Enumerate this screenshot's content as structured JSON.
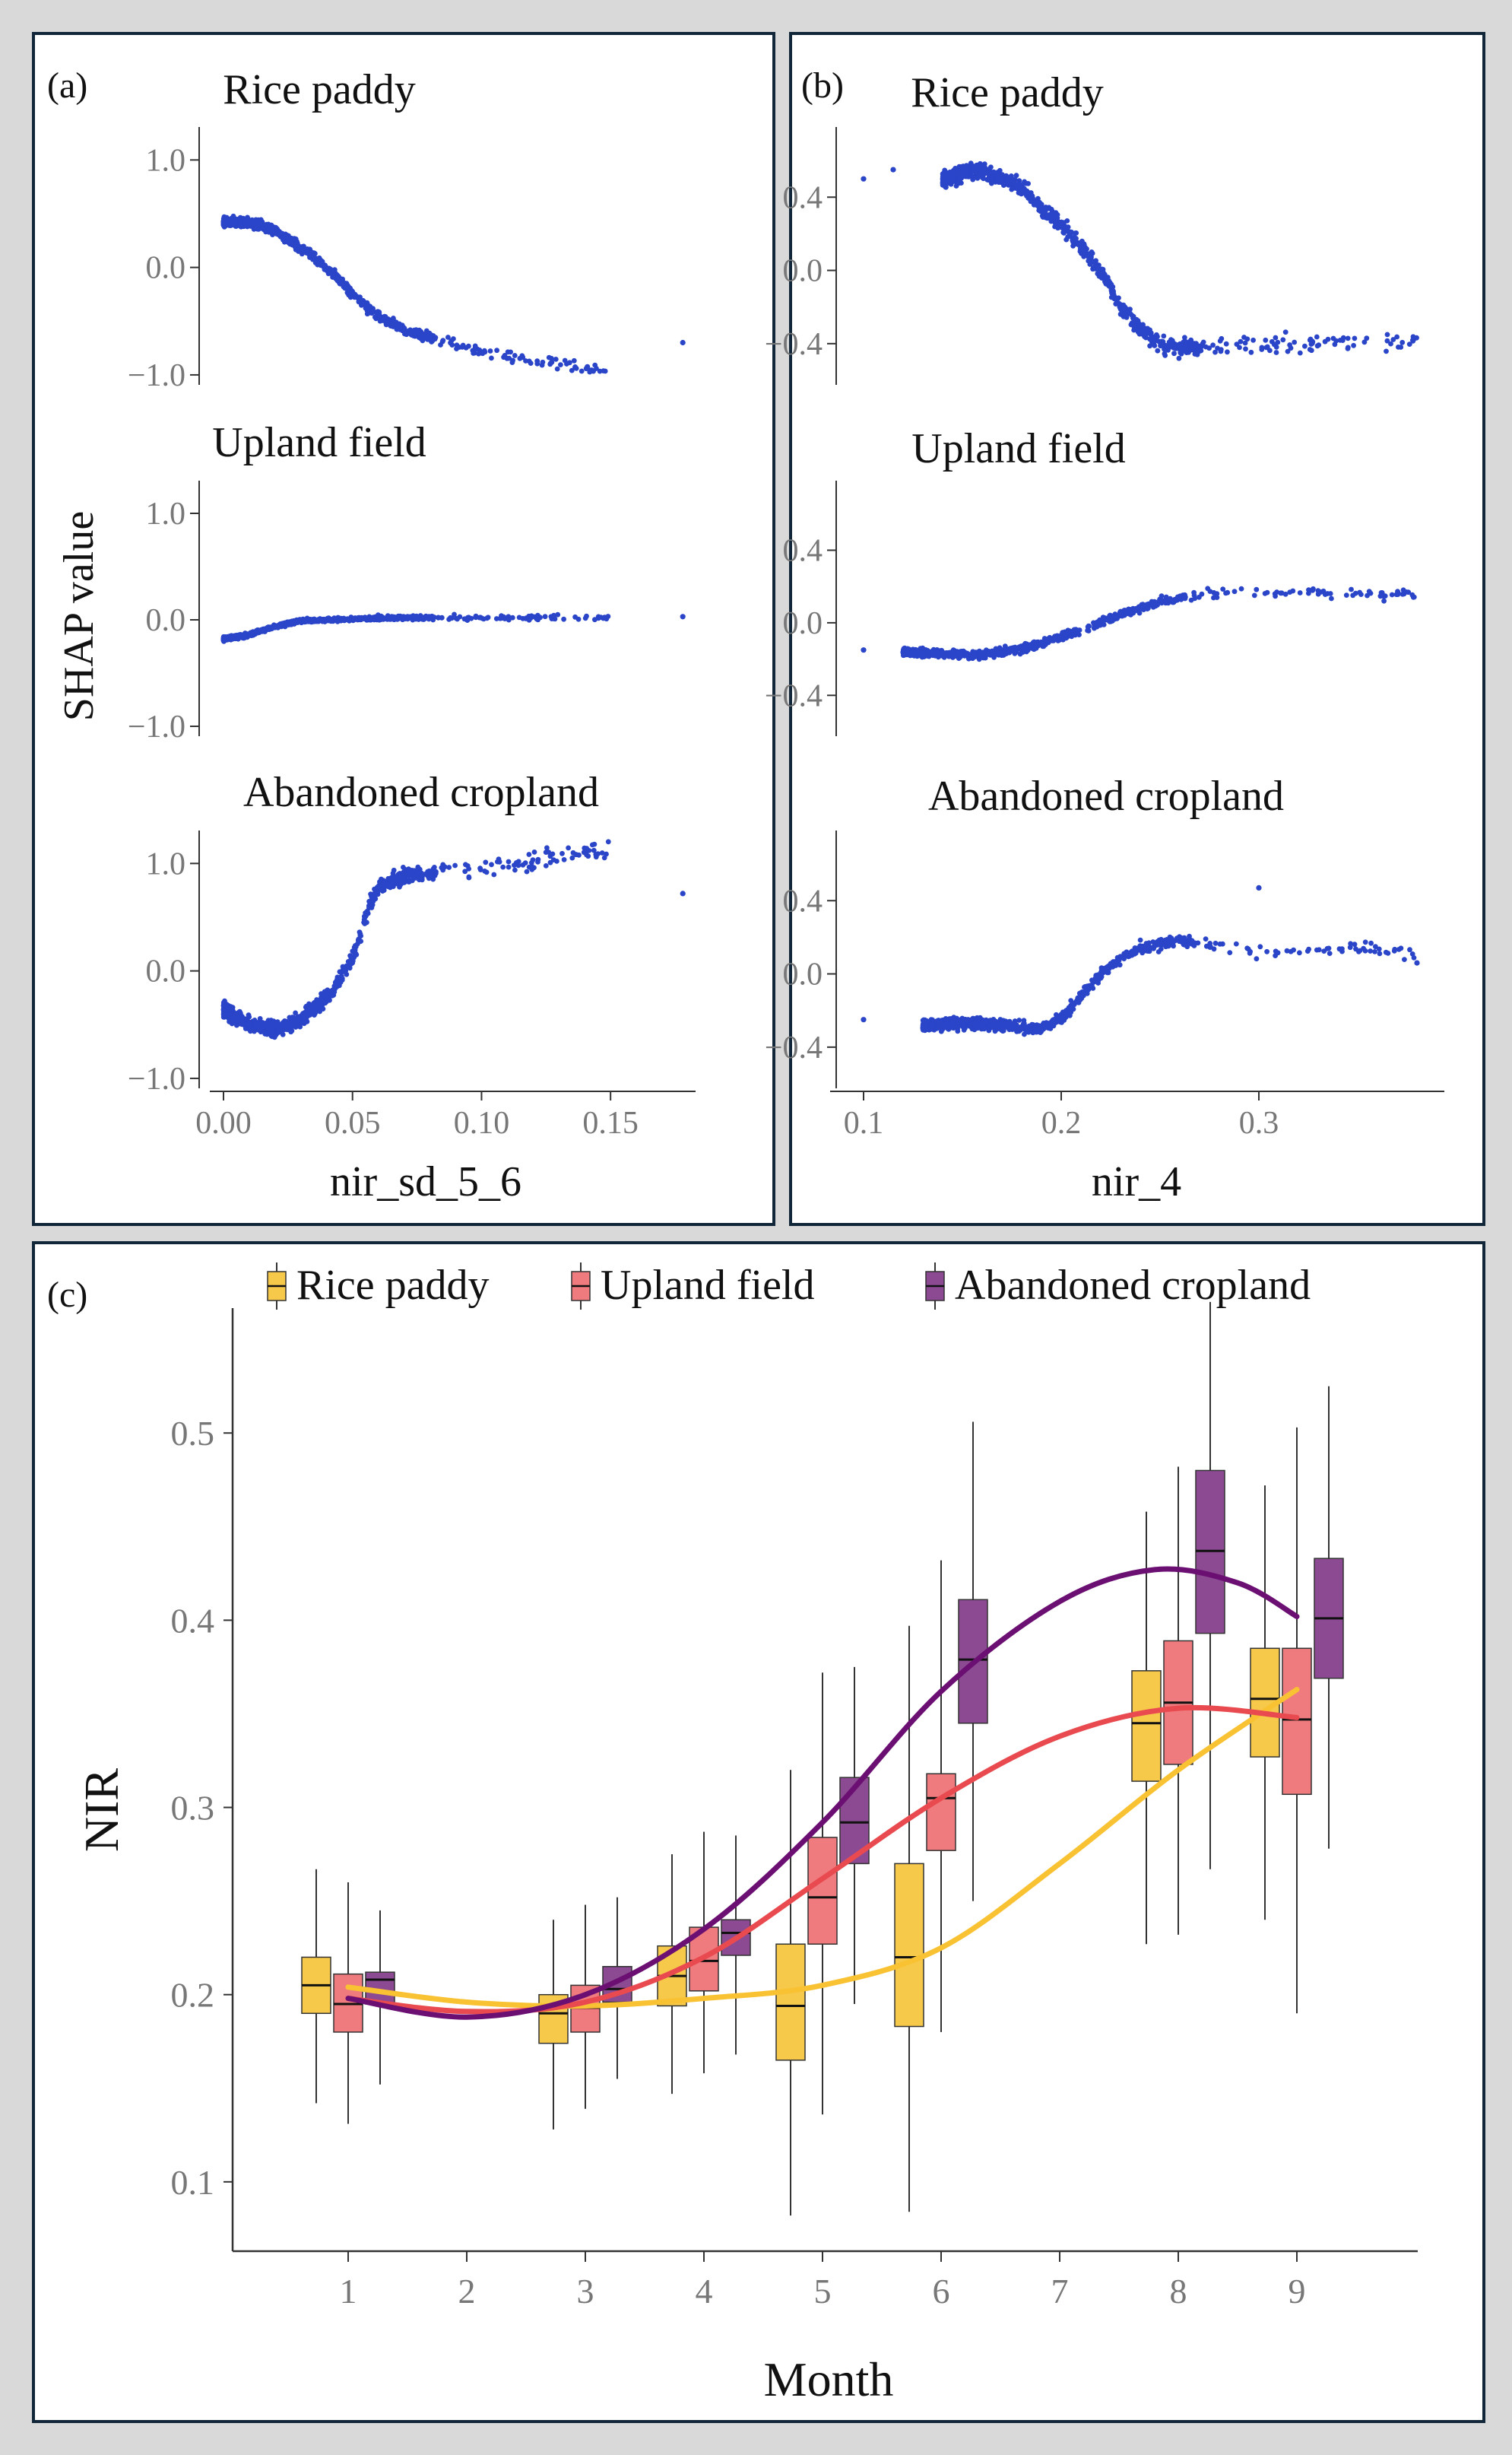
{
  "colors": {
    "scatter_point": "#2b45c9",
    "frame": "#12263a",
    "rice": "#f8c233",
    "rice_box": "#f7c94b",
    "upland": "#e84a4f",
    "upland_box": "#f07b7e",
    "abandoned": "#6b0f73",
    "abandoned_box": "#8c4a93",
    "axis": "#333333",
    "tick_text": "#777777"
  },
  "chart_data": [
    {
      "panel": "(a)",
      "type": "scatter",
      "xlabel": "nir_sd_5_6",
      "ylabel": "SHAP value",
      "xlim": [
        0.0,
        0.18
      ],
      "xticks": [
        "0.00",
        "0.05",
        "0.10",
        "0.15"
      ],
      "subplots": [
        {
          "title": "Rice paddy",
          "ylim": [
            -1.05,
            1.25
          ],
          "yticks": [
            "1.0",
            "0.0",
            "−1.0"
          ],
          "trend_x": [
            0.0,
            0.01,
            0.02,
            0.03,
            0.04,
            0.05,
            0.06,
            0.07,
            0.08,
            0.09,
            0.1,
            0.12,
            0.15
          ],
          "trend_y": [
            0.42,
            0.42,
            0.35,
            0.18,
            0.0,
            -0.25,
            -0.45,
            -0.58,
            -0.66,
            -0.72,
            -0.78,
            -0.86,
            -0.98
          ],
          "spread": 0.07,
          "outliers": [
            [
              0.178,
              -0.7
            ]
          ]
        },
        {
          "title": "Upland field",
          "ylim": [
            -1.05,
            1.25
          ],
          "yticks": [
            "1.0",
            "0.0",
            "−1.0"
          ],
          "trend_x": [
            0.0,
            0.01,
            0.02,
            0.03,
            0.05,
            0.07,
            0.1,
            0.15
          ],
          "trend_y": [
            -0.18,
            -0.14,
            -0.06,
            -0.01,
            0.01,
            0.02,
            0.02,
            0.02
          ],
          "spread": 0.03,
          "outliers": [
            [
              0.178,
              0.03
            ]
          ]
        },
        {
          "title": "Abandoned cropland",
          "ylim": [
            -1.05,
            1.25
          ],
          "yticks": [
            "1.0",
            "0.0",
            "−1.0"
          ],
          "trend_x": [
            0.0,
            0.01,
            0.02,
            0.03,
            0.04,
            0.05,
            0.055,
            0.06,
            0.07,
            0.08,
            0.1,
            0.12,
            0.15
          ],
          "trend_y": [
            -0.35,
            -0.5,
            -0.55,
            -0.45,
            -0.25,
            0.1,
            0.5,
            0.78,
            0.88,
            0.92,
            0.96,
            1.02,
            1.15
          ],
          "spread": 0.12,
          "outliers": [
            [
              0.178,
              0.72
            ]
          ]
        }
      ]
    },
    {
      "panel": "(b)",
      "type": "scatter",
      "xlabel": "nir_4",
      "ylabel": "",
      "xlim": [
        0.09,
        0.39
      ],
      "xticks": [
        "0.1",
        "0.2",
        "0.3"
      ],
      "subplots": [
        {
          "title": "Rice paddy",
          "ylim": [
            -0.6,
            0.75
          ],
          "yticks": [
            "0.4",
            "0.0",
            "−0.4"
          ],
          "trend_x": [
            0.14,
            0.16,
            0.18,
            0.2,
            0.22,
            0.23,
            0.24,
            0.25,
            0.26,
            0.28,
            0.3,
            0.35,
            0.38
          ],
          "trend_y": [
            0.5,
            0.55,
            0.45,
            0.25,
            0.0,
            -0.2,
            -0.32,
            -0.4,
            -0.42,
            -0.42,
            -0.4,
            -0.38,
            -0.38
          ],
          "spread": 0.07,
          "outliers": [
            [
              0.1,
              0.5
            ],
            [
              0.115,
              0.55
            ]
          ]
        },
        {
          "title": "Upland field",
          "ylim": [
            -0.6,
            0.75
          ],
          "yticks": [
            "0.4",
            "0.0",
            "−0.4"
          ],
          "trend_x": [
            0.12,
            0.16,
            0.18,
            0.2,
            0.22,
            0.23,
            0.24,
            0.26,
            0.28,
            0.3,
            0.35,
            0.38
          ],
          "trend_y": [
            -0.16,
            -0.18,
            -0.14,
            -0.08,
            0.0,
            0.05,
            0.08,
            0.14,
            0.17,
            0.17,
            0.16,
            0.16
          ],
          "spread": 0.035,
          "outliers": [
            [
              0.1,
              -0.15
            ]
          ]
        },
        {
          "title": "Abandoned cropland",
          "ylim": [
            -0.6,
            0.75
          ],
          "yticks": [
            "0.4",
            "0.0",
            "−0.4"
          ],
          "trend_x": [
            0.13,
            0.15,
            0.17,
            0.19,
            0.2,
            0.21,
            0.22,
            0.23,
            0.24,
            0.26,
            0.28,
            0.3,
            0.35,
            0.38
          ],
          "trend_y": [
            -0.28,
            -0.27,
            -0.28,
            -0.3,
            -0.25,
            -0.12,
            0.0,
            0.08,
            0.14,
            0.18,
            0.15,
            0.12,
            0.15,
            0.1
          ],
          "spread": 0.05,
          "outliers": [
            [
              0.1,
              -0.25
            ],
            [
              0.3,
              0.47
            ],
            [
              0.38,
              0.06
            ]
          ]
        }
      ]
    },
    {
      "panel": "(c)",
      "type": "box",
      "xlabel": "Month",
      "ylabel": "NIR",
      "xlim": [
        0.05,
        10.0
      ],
      "ylim": [
        0.065,
        0.585
      ],
      "xticks": [
        "1",
        "2",
        "3",
        "4",
        "5",
        "6",
        "7",
        "8",
        "9"
      ],
      "yticks": [
        "0.1",
        "0.2",
        "0.3",
        "0.4",
        "0.5"
      ],
      "legend": [
        "Rice paddy",
        "Upland field",
        "Abandoned cropland"
      ],
      "legend_position": "top",
      "series": [
        {
          "name": "Rice paddy",
          "boxes": [
            {
              "month": 1,
              "min": 0.142,
              "q1": 0.19,
              "median": 0.205,
              "q3": 0.22,
              "max": 0.267
            },
            {
              "month": 3,
              "min": 0.128,
              "q1": 0.174,
              "median": 0.19,
              "q3": 0.2,
              "max": 0.24
            },
            {
              "month": 4,
              "min": 0.147,
              "q1": 0.194,
              "median": 0.21,
              "q3": 0.226,
              "max": 0.275
            },
            {
              "month": 5,
              "min": 0.082,
              "q1": 0.165,
              "median": 0.194,
              "q3": 0.227,
              "max": 0.32
            },
            {
              "month": 6,
              "min": 0.084,
              "q1": 0.183,
              "median": 0.22,
              "q3": 0.27,
              "max": 0.397
            },
            {
              "month": 8,
              "min": 0.227,
              "q1": 0.314,
              "median": 0.345,
              "q3": 0.373,
              "max": 0.458
            },
            {
              "month": 9,
              "min": 0.24,
              "q1": 0.327,
              "median": 0.358,
              "q3": 0.385,
              "max": 0.472
            }
          ],
          "smooth_x": [
            1,
            2,
            3,
            4,
            5,
            6,
            7,
            8,
            9
          ],
          "smooth_y": [
            0.204,
            0.196,
            0.194,
            0.198,
            0.205,
            0.225,
            0.27,
            0.32,
            0.363
          ]
        },
        {
          "name": "Upland field",
          "boxes": [
            {
              "month": 1,
              "min": 0.131,
              "q1": 0.18,
              "median": 0.195,
              "q3": 0.211,
              "max": 0.26
            },
            {
              "month": 3,
              "min": 0.139,
              "q1": 0.18,
              "median": 0.193,
              "q3": 0.205,
              "max": 0.248
            },
            {
              "month": 4,
              "min": 0.158,
              "q1": 0.202,
              "median": 0.218,
              "q3": 0.236,
              "max": 0.287
            },
            {
              "month": 5,
              "min": 0.136,
              "q1": 0.227,
              "median": 0.252,
              "q3": 0.284,
              "max": 0.372
            },
            {
              "month": 6,
              "min": 0.18,
              "q1": 0.277,
              "median": 0.305,
              "q3": 0.318,
              "max": 0.432
            },
            {
              "month": 8,
              "min": 0.232,
              "q1": 0.323,
              "median": 0.356,
              "q3": 0.389,
              "max": 0.482
            },
            {
              "month": 9,
              "min": 0.19,
              "q1": 0.307,
              "median": 0.347,
              "q3": 0.385,
              "max": 0.503
            }
          ],
          "smooth_x": [
            1,
            2,
            3,
            4,
            5,
            6,
            7,
            8,
            9
          ],
          "smooth_y": [
            0.198,
            0.191,
            0.196,
            0.22,
            0.262,
            0.305,
            0.338,
            0.353,
            0.348
          ]
        },
        {
          "name": "Abandoned cropland",
          "boxes": [
            {
              "month": 1,
              "min": 0.152,
              "q1": 0.195,
              "median": 0.208,
              "q3": 0.212,
              "max": 0.245
            },
            {
              "month": 3,
              "min": 0.155,
              "q1": 0.196,
              "median": 0.203,
              "q3": 0.215,
              "max": 0.252
            },
            {
              "month": 4,
              "min": 0.168,
              "q1": 0.221,
              "median": 0.233,
              "q3": 0.24,
              "max": 0.285
            },
            {
              "month": 5,
              "min": 0.195,
              "q1": 0.27,
              "median": 0.292,
              "q3": 0.316,
              "max": 0.375
            },
            {
              "month": 6,
              "min": 0.25,
              "q1": 0.345,
              "median": 0.379,
              "q3": 0.411,
              "max": 0.506
            },
            {
              "month": 8,
              "min": 0.267,
              "q1": 0.393,
              "median": 0.437,
              "q3": 0.48,
              "max": 0.57
            },
            {
              "month": 9,
              "min": 0.278,
              "q1": 0.369,
              "median": 0.401,
              "q3": 0.433,
              "max": 0.525
            }
          ],
          "smooth_x": [
            1,
            2,
            3,
            4,
            5,
            6,
            7,
            7.8,
            8.5,
            9
          ],
          "smooth_y": [
            0.198,
            0.188,
            0.2,
            0.235,
            0.292,
            0.362,
            0.41,
            0.427,
            0.42,
            0.402
          ]
        }
      ]
    }
  ]
}
